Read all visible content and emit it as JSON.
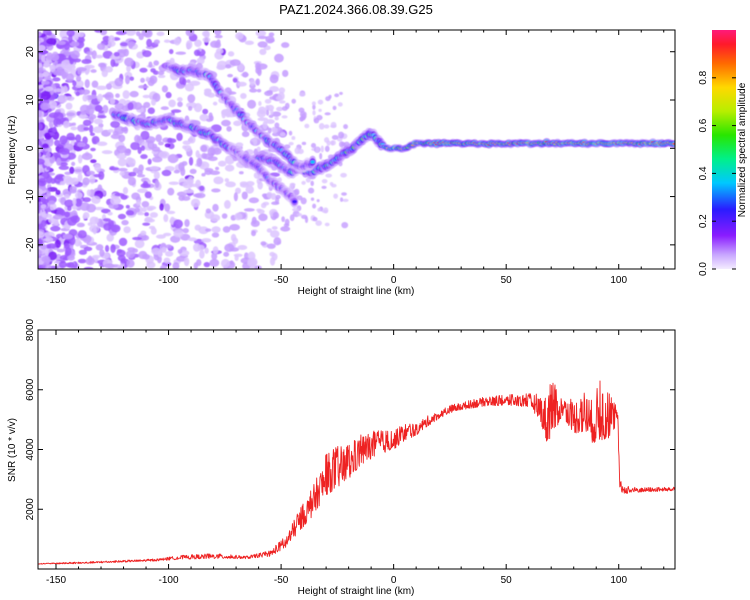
{
  "figure": {
    "title": "PAZ1.2024.366.08.39.G25"
  },
  "chart_data": [
    {
      "type": "heatmap",
      "xlabel": "Height of straight line (km)",
      "ylabel": "Frequency (Hz)",
      "xlim": [
        -158,
        125
      ],
      "ylim": [
        -25,
        24.5
      ],
      "xticks": [
        -150,
        -100,
        -50,
        0,
        50,
        100
      ],
      "yticks": [
        -20,
        -10,
        0,
        10,
        20
      ],
      "colorbar": {
        "label": "Normalized spectral amplitude",
        "range": [
          0,
          1
        ],
        "ticks": [
          "0.0",
          "0.2",
          "0.4",
          "0.6",
          "0.8"
        ]
      },
      "ridges": [
        {
          "name": "main",
          "points": [
            [
              -124,
              7
            ],
            [
              -118,
              6
            ],
            [
              -110,
              5
            ],
            [
              -100,
              6
            ],
            [
              -95,
              5
            ],
            [
              -88,
              4
            ],
            [
              -82,
              3
            ],
            [
              -76,
              1
            ],
            [
              -70,
              -1
            ],
            [
              -64,
              -3
            ],
            [
              -58,
              -2
            ],
            [
              -52,
              -3
            ],
            [
              -46,
              -5
            ],
            [
              -42,
              -4
            ],
            [
              -36,
              -5
            ],
            [
              -32,
              -4
            ],
            [
              -27,
              -3
            ],
            [
              -22,
              -1
            ],
            [
              -18,
              0
            ],
            [
              -14,
              2
            ],
            [
              -10,
              3
            ],
            [
              -6,
              1
            ],
            [
              -2,
              0
            ],
            [
              5,
              0
            ],
            [
              10,
              1
            ],
            [
              20,
              1
            ],
            [
              35,
              1
            ],
            [
              50,
              1
            ],
            [
              65,
              1
            ],
            [
              80,
              1
            ],
            [
              95,
              1
            ],
            [
              110,
              1
            ],
            [
              125,
              1
            ]
          ]
        },
        {
          "name": "upper",
          "points": [
            [
              -100,
              17
            ],
            [
              -95,
              16
            ],
            [
              -88,
              16
            ],
            [
              -82,
              15
            ],
            [
              -76,
              11
            ],
            [
              -70,
              8
            ],
            [
              -66,
              6
            ],
            [
              -60,
              3
            ],
            [
              -54,
              1
            ],
            [
              -48,
              -1
            ],
            [
              -42,
              -4
            ],
            [
              -36,
              -3
            ]
          ]
        },
        {
          "name": "secondary",
          "points": [
            [
              -72,
              0
            ],
            [
              -66,
              -2
            ],
            [
              -60,
              -4
            ],
            [
              -54,
              -7
            ],
            [
              -48,
              -9
            ],
            [
              -44,
              -11
            ]
          ]
        }
      ]
    },
    {
      "type": "line",
      "xlabel": "Height of straight line (km)",
      "ylabel": "SNR (10 * v/v)",
      "xlim": [
        -158,
        125
      ],
      "ylim": [
        0,
        8000
      ],
      "xticks": [
        -150,
        -100,
        -50,
        0,
        50,
        100
      ],
      "yticks": [
        2000,
        4000,
        6000,
        8000
      ],
      "color": "#ee2222",
      "envelope": [
        [
          -158,
          150,
          200
        ],
        [
          -140,
          150,
          260
        ],
        [
          -120,
          200,
          320
        ],
        [
          -105,
          230,
          380
        ],
        [
          -95,
          260,
          520
        ],
        [
          -80,
          270,
          600
        ],
        [
          -65,
          300,
          480
        ],
        [
          -55,
          330,
          700
        ],
        [
          -48,
          500,
          1300
        ],
        [
          -42,
          900,
          2300
        ],
        [
          -36,
          1300,
          3200
        ],
        [
          -30,
          1800,
          4500
        ],
        [
          -25,
          2000,
          4800
        ],
        [
          -20,
          2400,
          4700
        ],
        [
          -15,
          2900,
          5000
        ],
        [
          -10,
          3200,
          5100
        ],
        [
          -5,
          3500,
          5000
        ],
        [
          0,
          3700,
          4900
        ],
        [
          5,
          4000,
          5200
        ],
        [
          10,
          4300,
          5000
        ],
        [
          15,
          4600,
          5300
        ],
        [
          20,
          4900,
          5400
        ],
        [
          25,
          5100,
          5600
        ],
        [
          30,
          5200,
          5700
        ],
        [
          35,
          5250,
          5800
        ],
        [
          40,
          5300,
          5900
        ],
        [
          45,
          5300,
          5950
        ],
        [
          50,
          5300,
          6000
        ],
        [
          55,
          5250,
          6050
        ],
        [
          60,
          5200,
          6100
        ],
        [
          65,
          4600,
          6300
        ],
        [
          68,
          3400,
          6600
        ],
        [
          70,
          3200,
          8100
        ],
        [
          72,
          4000,
          6700
        ],
        [
          75,
          4800,
          6100
        ],
        [
          80,
          4000,
          6200
        ],
        [
          85,
          3800,
          6800
        ],
        [
          88,
          3500,
          6400
        ],
        [
          92,
          3200,
          7400
        ],
        [
          95,
          3500,
          6800
        ],
        [
          98,
          4200,
          6000
        ],
        [
          99.5,
          4800,
          5600
        ],
        [
          100.5,
          2300,
          3200
        ],
        [
          103,
          2400,
          2900
        ],
        [
          110,
          2500,
          2800
        ],
        [
          125,
          2550,
          2800
        ]
      ]
    }
  ]
}
